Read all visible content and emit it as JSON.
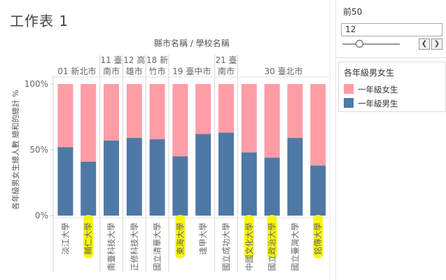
{
  "sheet_title": "工作表 1",
  "parameter": {
    "title": "前50",
    "value": "12",
    "prev_icon": "chevron-left-icon",
    "next_icon": "chevron-right-icon"
  },
  "legend": {
    "title": "各年級男女生",
    "items": [
      {
        "label": "一年級女生",
        "color": "#FF9DA7"
      },
      {
        "label": "一年級男生",
        "color": "#4E79A7"
      }
    ]
  },
  "chart_data": {
    "type": "bar",
    "stacked": "100%",
    "title": "",
    "column_header": "縣市名稱 / 學校名稱",
    "ylabel": "各年級男女生總人數 總和的總計 %",
    "ylim": [
      0,
      100
    ],
    "yticks": [
      "0%",
      "50%",
      "100%"
    ],
    "groups": [
      {
        "name": "01 新北市",
        "categories": [
          "淡江大學",
          "輔仁大學"
        ]
      },
      {
        "name": "11 臺南市",
        "categories": [
          "南臺科技大學"
        ]
      },
      {
        "name": "12 高雄市",
        "categories": [
          "正修科技大學"
        ]
      },
      {
        "name": "18 新竹市",
        "categories": [
          "國立清華大學"
        ]
      },
      {
        "name": "19 臺中市",
        "categories": [
          "東海大學",
          "逢甲大學"
        ]
      },
      {
        "name": "21 臺南市",
        "categories": [
          "國立成功大學"
        ]
      },
      {
        "name": "30 臺北市",
        "categories": [
          "中國文化大學",
          "國立政治大學",
          "國立臺灣大學",
          "銘傳大學"
        ]
      }
    ],
    "categories": [
      "淡江大學",
      "輔仁大學",
      "南臺科技大學",
      "正修科技大學",
      "國立清華大學",
      "東海大學",
      "逢甲大學",
      "國立成功大學",
      "中國文化大學",
      "國立政治大學",
      "國立臺灣大學",
      "銘傳大學"
    ],
    "series": [
      {
        "name": "一年級男生",
        "color": "#4E79A7",
        "values": [
          52,
          41,
          57,
          59,
          58,
          45,
          62,
          63,
          48,
          44,
          59,
          38
        ]
      },
      {
        "name": "一年級女生",
        "color": "#FF9DA7",
        "values": [
          48,
          59,
          43,
          41,
          42,
          55,
          38,
          37,
          52,
          56,
          41,
          62
        ]
      }
    ],
    "highlighted": [
      "輔仁大學",
      "東海大學",
      "中國文化大學",
      "國立政治大學",
      "銘傳大學"
    ],
    "highlight_color": "#F5F500"
  }
}
